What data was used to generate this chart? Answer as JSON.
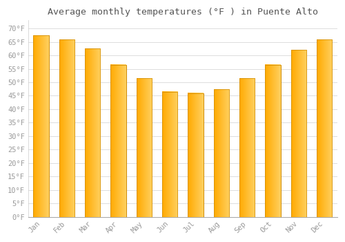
{
  "title": "Average monthly temperatures (°F ) in Puente Alto",
  "months": [
    "Jan",
    "Feb",
    "Mar",
    "Apr",
    "May",
    "Jun",
    "Jul",
    "Aug",
    "Sep",
    "Oct",
    "Nov",
    "Dec"
  ],
  "values": [
    67.5,
    66.0,
    62.5,
    56.5,
    51.5,
    46.5,
    46.0,
    47.5,
    51.5,
    56.5,
    62.0,
    66.0
  ],
  "bar_color_left": "#FFAA00",
  "bar_color_right": "#FFD060",
  "bar_edge_color": "#CC8800",
  "background_color": "#FFFFFF",
  "grid_color": "#DDDDDD",
  "ylim": [
    0,
    73
  ],
  "yticks": [
    0,
    5,
    10,
    15,
    20,
    25,
    30,
    35,
    40,
    45,
    50,
    55,
    60,
    65,
    70
  ],
  "ytick_labels": [
    "0°F",
    "5°F",
    "10°F",
    "15°F",
    "20°F",
    "25°F",
    "30°F",
    "35°F",
    "40°F",
    "45°F",
    "50°F",
    "55°F",
    "60°F",
    "65°F",
    "70°F"
  ],
  "title_fontsize": 9.5,
  "tick_fontsize": 7.5,
  "tick_color": "#999999",
  "title_color": "#555555",
  "figsize": [
    5.0,
    3.5
  ],
  "dpi": 100,
  "bar_width": 0.6
}
